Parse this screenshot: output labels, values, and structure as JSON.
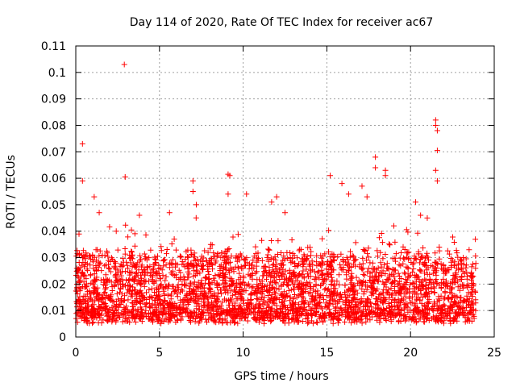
{
  "chart_data": {
    "type": "scatter",
    "title": "Day 114 of 2020, Rate Of TEC Index for receiver ac67",
    "xlabel": "GPS time / hours",
    "ylabel": "ROTI / TECUs",
    "xlim": [
      0,
      25
    ],
    "ylim": [
      0,
      0.11
    ],
    "x_ticks": [
      0,
      5,
      10,
      15,
      20,
      25
    ],
    "x_tick_labels": [
      "0",
      "5",
      "10",
      "15",
      "20",
      "25"
    ],
    "y_ticks": [
      0,
      0.01,
      0.02,
      0.03,
      0.04,
      0.05,
      0.06,
      0.07,
      0.08,
      0.09,
      0.1,
      0.11
    ],
    "y_tick_labels": [
      "0",
      "0.01",
      "0.02",
      "0.03",
      "0.04",
      "0.05",
      "0.06",
      "0.07",
      "0.08",
      "0.09",
      "0.1",
      "0.11"
    ],
    "grid": true,
    "marker": "+",
    "series": [
      {
        "name": "ROTI",
        "color": "#ff0000",
        "x_range": [
          0,
          23.9
        ],
        "baseline_band": [
          0.005,
          0.03
        ],
        "notable_points": [
          {
            "x": 0.4,
            "y": 0.073
          },
          {
            "x": 0.4,
            "y": 0.059
          },
          {
            "x": 1.1,
            "y": 0.053
          },
          {
            "x": 1.4,
            "y": 0.047
          },
          {
            "x": 2.9,
            "y": 0.103
          },
          {
            "x": 2.95,
            "y": 0.0605
          },
          {
            "x": 3.8,
            "y": 0.046
          },
          {
            "x": 5.6,
            "y": 0.047
          },
          {
            "x": 7.0,
            "y": 0.059
          },
          {
            "x": 7.0,
            "y": 0.055
          },
          {
            "x": 7.2,
            "y": 0.05
          },
          {
            "x": 9.1,
            "y": 0.0615
          },
          {
            "x": 9.2,
            "y": 0.061
          },
          {
            "x": 9.1,
            "y": 0.054
          },
          {
            "x": 10.2,
            "y": 0.054
          },
          {
            "x": 11.7,
            "y": 0.051
          },
          {
            "x": 12.0,
            "y": 0.053
          },
          {
            "x": 12.5,
            "y": 0.047
          },
          {
            "x": 15.2,
            "y": 0.061
          },
          {
            "x": 15.9,
            "y": 0.058
          },
          {
            "x": 16.3,
            "y": 0.054
          },
          {
            "x": 17.1,
            "y": 0.057
          },
          {
            "x": 17.4,
            "y": 0.053
          },
          {
            "x": 17.9,
            "y": 0.068
          },
          {
            "x": 17.9,
            "y": 0.064
          },
          {
            "x": 18.5,
            "y": 0.063
          },
          {
            "x": 18.5,
            "y": 0.061
          },
          {
            "x": 19.0,
            "y": 0.042
          },
          {
            "x": 20.3,
            "y": 0.051
          },
          {
            "x": 20.6,
            "y": 0.046
          },
          {
            "x": 21.0,
            "y": 0.045
          },
          {
            "x": 21.5,
            "y": 0.082
          },
          {
            "x": 21.5,
            "y": 0.08
          },
          {
            "x": 21.6,
            "y": 0.078
          },
          {
            "x": 21.6,
            "y": 0.0705
          },
          {
            "x": 21.5,
            "y": 0.063
          },
          {
            "x": 21.6,
            "y": 0.059
          },
          {
            "x": 23.5,
            "y": 0.033
          }
        ]
      }
    ]
  }
}
